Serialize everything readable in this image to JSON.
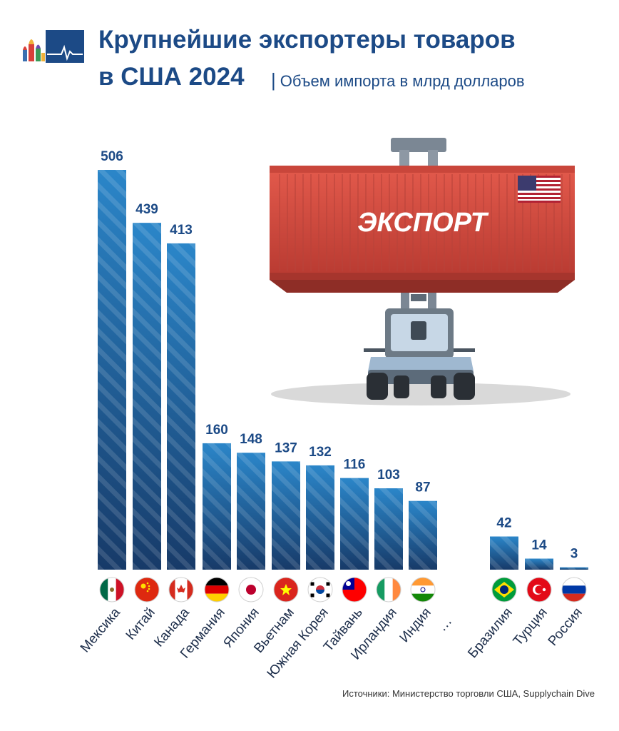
{
  "header": {
    "title_line1": "Крупнейшие экспортеры товаров",
    "title_line2": "в США 2024",
    "subtitle": "Объем импорта в млрд долларов"
  },
  "illustration": {
    "container_label": "ЭКСПОРТ"
  },
  "source": "Источники: Министерство торговли США, Supplychain Dive",
  "colors": {
    "title": "#1c4a86",
    "bar_top": "#2b86c9",
    "bar_bottom": "#173a68",
    "container": "#d94f43"
  },
  "chart_data": {
    "type": "bar",
    "title": "Крупнейшие экспортеры товаров в США 2024",
    "ylabel": "",
    "xlabel": "",
    "ylim": [
      0,
      506
    ],
    "grid": false,
    "categories": [
      "Мексика",
      "Китай",
      "Канада",
      "Германия",
      "Япония",
      "Вьетнам",
      "Южная Корея",
      "Тайвань",
      "Ирландия",
      "Индия",
      "Бразилия",
      "Турция",
      "Россия"
    ],
    "values": [
      506,
      439,
      413,
      160,
      148,
      137,
      132,
      116,
      103,
      87,
      42,
      14,
      3
    ],
    "flags": [
      "mexico-flag-icon",
      "china-flag-icon",
      "canada-flag-icon",
      "germany-flag-icon",
      "japan-flag-icon",
      "vietnam-flag-icon",
      "south-korea-flag-icon",
      "taiwan-flag-icon",
      "ireland-flag-icon",
      "india-flag-icon",
      "brazil-flag-icon",
      "turkey-flag-icon",
      "russia-flag-icon"
    ],
    "gap_marker": "…"
  }
}
